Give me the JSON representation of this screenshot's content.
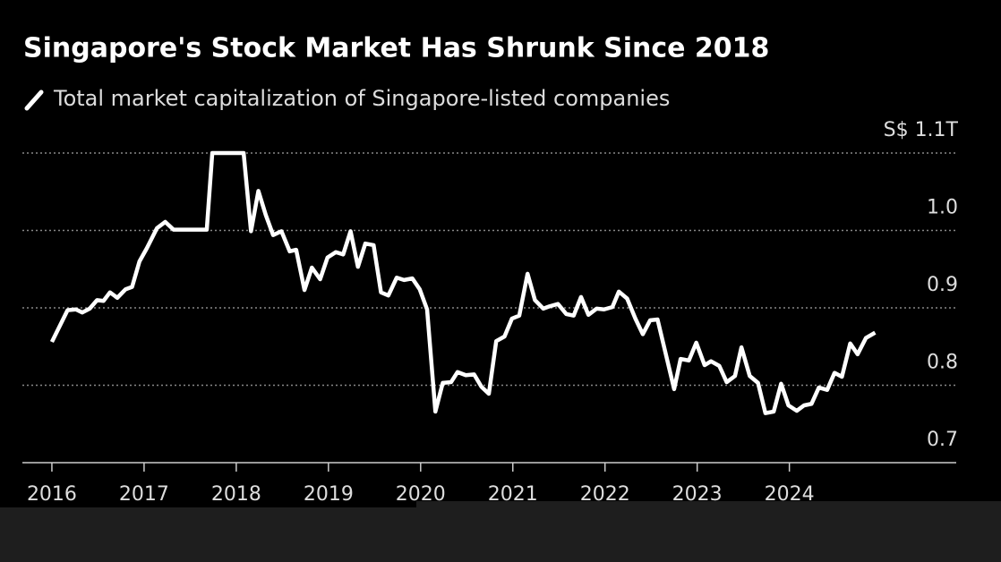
{
  "chart_data": {
    "type": "line",
    "title": "Singapore's Stock Market Has Shrunk Since 2018",
    "subtitle": "Total market capitalization of Singapore-listed companies",
    "x": [
      2016.0,
      2016.17,
      2016.26,
      2016.33,
      2016.41,
      2016.49,
      2016.56,
      2016.63,
      2016.71,
      2016.8,
      2016.87,
      2016.95,
      2017.03,
      2017.14,
      2017.23,
      2017.32,
      2017.68,
      2017.74,
      2018.08,
      2018.16,
      2018.24,
      2018.32,
      2018.4,
      2018.49,
      2018.58,
      2018.65,
      2018.74,
      2018.82,
      2018.91,
      2018.99,
      2019.08,
      2019.16,
      2019.24,
      2019.32,
      2019.4,
      2019.49,
      2019.57,
      2019.65,
      2019.74,
      2019.82,
      2019.91,
      2019.99,
      2020.07,
      2020.16,
      2020.24,
      2020.33,
      2020.4,
      2020.49,
      2020.58,
      2020.66,
      2020.74,
      2020.82,
      2020.91,
      2020.99,
      2021.07,
      2021.16,
      2021.24,
      2021.33,
      2021.4,
      2021.49,
      2021.58,
      2021.66,
      2021.74,
      2021.82,
      2021.91,
      2021.99,
      2022.08,
      2022.15,
      2022.24,
      2022.33,
      2022.41,
      2022.49,
      2022.57,
      2022.66,
      2022.75,
      2022.82,
      2022.91,
      2022.99,
      2023.08,
      2023.15,
      2023.24,
      2023.32,
      2023.41,
      2023.48,
      2023.57,
      2023.66,
      2023.74,
      2023.83,
      2023.91,
      2023.99,
      2024.08,
      2024.16,
      2024.24,
      2024.32,
      2024.41,
      2024.49,
      2024.57,
      2024.66,
      2024.74,
      2024.83,
      2024.93
    ],
    "series": [
      {
        "name": "Total market capitalization of Singapore-listed companies",
        "color": "#ffffff",
        "values": [
          0.856,
          0.897,
          0.898,
          0.894,
          0.899,
          0.91,
          0.909,
          0.92,
          0.913,
          0.924,
          0.927,
          0.96,
          0.977,
          1.003,
          1.011,
          1.001,
          1.001,
          1.1,
          1.1,
          0.999,
          1.051,
          1.02,
          0.994,
          0.999,
          0.973,
          0.975,
          0.923,
          0.952,
          0.937,
          0.965,
          0.972,
          0.969,
          0.999,
          0.953,
          0.983,
          0.981,
          0.92,
          0.916,
          0.939,
          0.936,
          0.938,
          0.924,
          0.898,
          0.766,
          0.803,
          0.804,
          0.817,
          0.813,
          0.814,
          0.798,
          0.789,
          0.857,
          0.863,
          0.886,
          0.89,
          0.944,
          0.91,
          0.899,
          0.902,
          0.905,
          0.892,
          0.89,
          0.914,
          0.891,
          0.899,
          0.898,
          0.901,
          0.921,
          0.912,
          0.886,
          0.866,
          0.884,
          0.885,
          0.84,
          0.795,
          0.834,
          0.832,
          0.855,
          0.826,
          0.831,
          0.825,
          0.804,
          0.812,
          0.849,
          0.812,
          0.803,
          0.764,
          0.766,
          0.802,
          0.774,
          0.767,
          0.774,
          0.776,
          0.797,
          0.794,
          0.816,
          0.811,
          0.854,
          0.84,
          0.861,
          0.868
        ]
      }
    ],
    "xlim": [
      2015.68,
      2025.81
    ],
    "xticks": [
      2016,
      2017,
      2018,
      2019,
      2020,
      2021,
      2022,
      2023,
      2024
    ],
    "ylim": [
      0.7,
      1.1
    ],
    "yticks": [
      0.7,
      0.8,
      0.9,
      {
        "value": 1,
        "label": "1.0"
      },
      {
        "value": 1.1,
        "label": "S$ 1.1T"
      }
    ],
    "grid": true
  }
}
